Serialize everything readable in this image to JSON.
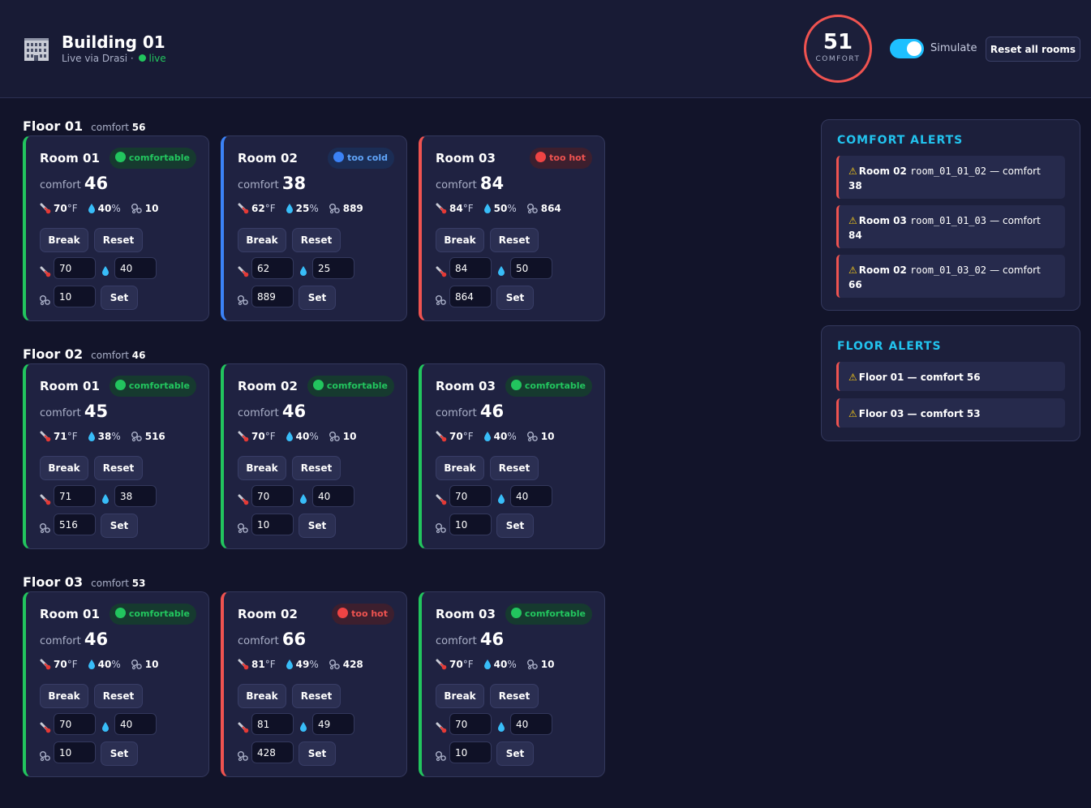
{
  "header": {
    "title": "Building 01",
    "subtitle": "Live via Drasi ·",
    "live_label": "live",
    "comfort_value": "51",
    "comfort_label": "COMFORT",
    "simulate_label": "Simulate",
    "simulate_on": true,
    "reset_all_label": "Reset all rooms"
  },
  "labels": {
    "comfort": "comfort",
    "break": "Break",
    "reset": "Reset",
    "set": "Set"
  },
  "colors": {
    "comfortable": "#22c55e",
    "too_cold": "#3b82f6",
    "too_hot": "#ef5350",
    "accent": "#22c3ee"
  },
  "floors": [
    {
      "name": "Floor 01",
      "comfort": "56",
      "rooms": [
        {
          "name": "Room 01",
          "status": "comfortable",
          "comfort": "46",
          "temp": "70",
          "temp_unit": "°F",
          "humidity": "40",
          "hum_unit": "%",
          "co2": "10"
        },
        {
          "name": "Room 02",
          "status": "too cold",
          "comfort": "38",
          "temp": "62",
          "temp_unit": "°F",
          "humidity": "25",
          "hum_unit": "%",
          "co2": "889"
        },
        {
          "name": "Room 03",
          "status": "too hot",
          "comfort": "84",
          "temp": "84",
          "temp_unit": "°F",
          "humidity": "50",
          "hum_unit": "%",
          "co2": "864"
        }
      ]
    },
    {
      "name": "Floor 02",
      "comfort": "46",
      "rooms": [
        {
          "name": "Room 01",
          "status": "comfortable",
          "comfort": "45",
          "temp": "71",
          "temp_unit": "°F",
          "humidity": "38",
          "hum_unit": "%",
          "co2": "516"
        },
        {
          "name": "Room 02",
          "status": "comfortable",
          "comfort": "46",
          "temp": "70",
          "temp_unit": "°F",
          "humidity": "40",
          "hum_unit": "%",
          "co2": "10"
        },
        {
          "name": "Room 03",
          "status": "comfortable",
          "comfort": "46",
          "temp": "70",
          "temp_unit": "°F",
          "humidity": "40",
          "hum_unit": "%",
          "co2": "10"
        }
      ]
    },
    {
      "name": "Floor 03",
      "comfort": "53",
      "rooms": [
        {
          "name": "Room 01",
          "status": "comfortable",
          "comfort": "46",
          "temp": "70",
          "temp_unit": "°F",
          "humidity": "40",
          "hum_unit": "%",
          "co2": "10"
        },
        {
          "name": "Room 02",
          "status": "too hot",
          "comfort": "66",
          "temp": "81",
          "temp_unit": "°F",
          "humidity": "49",
          "hum_unit": "%",
          "co2": "428"
        },
        {
          "name": "Room 03",
          "status": "comfortable",
          "comfort": "46",
          "temp": "70",
          "temp_unit": "°F",
          "humidity": "40",
          "hum_unit": "%",
          "co2": "10"
        }
      ]
    }
  ],
  "comfort_alerts": {
    "title": "COMFORT ALERTS",
    "items": [
      {
        "room": "Room 02",
        "id": "room_01_01_02",
        "text": "— comfort",
        "value": "38"
      },
      {
        "room": "Room 03",
        "id": "room_01_01_03",
        "text": "— comfort",
        "value": "84"
      },
      {
        "room": "Room 02",
        "id": "room_01_03_02",
        "text": "— comfort",
        "value": "66"
      }
    ]
  },
  "floor_alerts": {
    "title": "FLOOR ALERTS",
    "items": [
      {
        "text": "Floor 01 — comfort 56"
      },
      {
        "text": "Floor 03 — comfort 53"
      }
    ]
  }
}
